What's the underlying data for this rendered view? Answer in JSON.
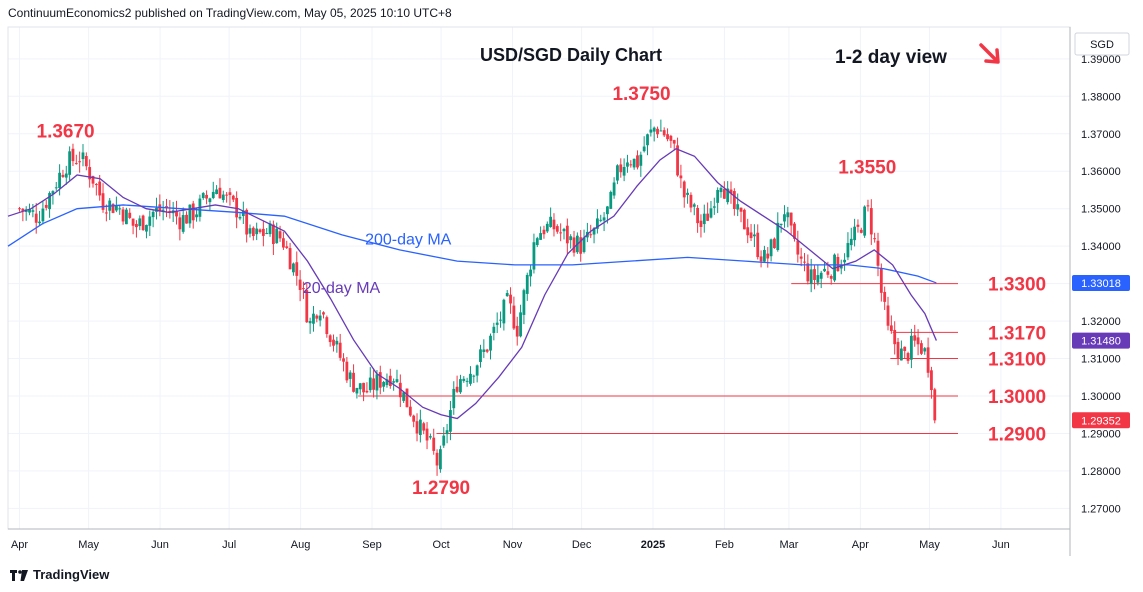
{
  "header": {
    "publisher": "ContinuumEconomics2 published on TradingView.com, May 05, 2025 10:10 UTC+8"
  },
  "brand": {
    "name": "TradingView"
  },
  "chart_data": {
    "type": "candlestick",
    "title": "USD/SGD Daily Chart",
    "view_label": "1-2 day view",
    "view_direction": "down",
    "currency": "SGD",
    "y_range": [
      1.2645,
      1.3985
    ],
    "y_ticks": [
      "1.39000",
      "1.38000",
      "1.37000",
      "1.36000",
      "1.35000",
      "1.34000",
      "1.33000",
      "1.32000",
      "1.31000",
      "1.30000",
      "1.29000",
      "1.28000",
      "1.27000"
    ],
    "y_tick_values": [
      1.39,
      1.38,
      1.37,
      1.36,
      1.35,
      1.34,
      1.33,
      1.32,
      1.31,
      1.3,
      1.29,
      1.28,
      1.27
    ],
    "x_labels": [
      "Apr",
      "May",
      "Jun",
      "Jul",
      "Aug",
      "Sep",
      "Oct",
      "Nov",
      "Dec",
      "2025",
      "Feb",
      "Mar",
      "Apr",
      "May",
      "Jun"
    ],
    "x_label_bold": [
      false,
      false,
      false,
      false,
      false,
      false,
      false,
      false,
      false,
      true,
      false,
      false,
      false,
      false,
      false
    ],
    "x_label_days": [
      0,
      30,
      61,
      91,
      122,
      153,
      183,
      214,
      244,
      275,
      306,
      334,
      365,
      395,
      426
    ],
    "x_domain_days": [
      -5,
      456
    ],
    "ohlc_close_points": [
      [
        0,
        1.35
      ],
      [
        8,
        1.348
      ],
      [
        14,
        1.355
      ],
      [
        20,
        1.362
      ],
      [
        26,
        1.364
      ],
      [
        32,
        1.358
      ],
      [
        36,
        1.352
      ],
      [
        44,
        1.35
      ],
      [
        50,
        1.345
      ],
      [
        58,
        1.349
      ],
      [
        64,
        1.35
      ],
      [
        70,
        1.347
      ],
      [
        76,
        1.349
      ],
      [
        80,
        1.352
      ],
      [
        86,
        1.356
      ],
      [
        90,
        1.352
      ],
      [
        96,
        1.349
      ],
      [
        100,
        1.342
      ],
      [
        108,
        1.344
      ],
      [
        114,
        1.342
      ],
      [
        118,
        1.336
      ],
      [
        122,
        1.33
      ],
      [
        126,
        1.319
      ],
      [
        130,
        1.325
      ],
      [
        134,
        1.318
      ],
      [
        138,
        1.312
      ],
      [
        144,
        1.304
      ],
      [
        150,
        1.301
      ],
      [
        156,
        1.304
      ],
      [
        162,
        1.306
      ],
      [
        166,
        1.301
      ],
      [
        170,
        1.296
      ],
      [
        174,
        1.291
      ],
      [
        178,
        1.287
      ],
      [
        182,
        1.281
      ],
      [
        186,
        1.293
      ],
      [
        190,
        1.304
      ],
      [
        196,
        1.307
      ],
      [
        202,
        1.312
      ],
      [
        208,
        1.32
      ],
      [
        212,
        1.325
      ],
      [
        216,
        1.318
      ],
      [
        220,
        1.33
      ],
      [
        224,
        1.343
      ],
      [
        228,
        1.345
      ],
      [
        232,
        1.345
      ],
      [
        238,
        1.342
      ],
      [
        244,
        1.34
      ],
      [
        250,
        1.344
      ],
      [
        256,
        1.35
      ],
      [
        260,
        1.36
      ],
      [
        264,
        1.364
      ],
      [
        268,
        1.362
      ],
      [
        272,
        1.368
      ],
      [
        276,
        1.372
      ],
      [
        280,
        1.37
      ],
      [
        284,
        1.366
      ],
      [
        288,
        1.354
      ],
      [
        292,
        1.35
      ],
      [
        296,
        1.345
      ],
      [
        300,
        1.35
      ],
      [
        304,
        1.359
      ],
      [
        308,
        1.352
      ],
      [
        312,
        1.348
      ],
      [
        316,
        1.345
      ],
      [
        320,
        1.34
      ],
      [
        324,
        1.336
      ],
      [
        328,
        1.342
      ],
      [
        332,
        1.35
      ],
      [
        336,
        1.34
      ],
      [
        340,
        1.335
      ],
      [
        344,
        1.331
      ],
      [
        348,
        1.333
      ],
      [
        352,
        1.334
      ],
      [
        356,
        1.336
      ],
      [
        360,
        1.34
      ],
      [
        364,
        1.344
      ],
      [
        368,
        1.35
      ],
      [
        371,
        1.342
      ],
      [
        374,
        1.328
      ],
      [
        377,
        1.317
      ],
      [
        380,
        1.314
      ],
      [
        384,
        1.31
      ],
      [
        388,
        1.314
      ],
      [
        392,
        1.313
      ],
      [
        394,
        1.31
      ],
      [
        396,
        1.304
      ],
      [
        398,
        1.2935
      ]
    ],
    "ma_20_day": {
      "name": "20-day MA",
      "color": "#673ab7",
      "points": [
        [
          -5,
          1.348
        ],
        [
          5,
          1.35
        ],
        [
          15,
          1.354
        ],
        [
          25,
          1.359
        ],
        [
          35,
          1.358
        ],
        [
          45,
          1.353
        ],
        [
          55,
          1.35
        ],
        [
          65,
          1.349
        ],
        [
          75,
          1.35
        ],
        [
          85,
          1.351
        ],
        [
          95,
          1.35
        ],
        [
          105,
          1.347
        ],
        [
          115,
          1.344
        ],
        [
          125,
          1.336
        ],
        [
          135,
          1.326
        ],
        [
          145,
          1.315
        ],
        [
          155,
          1.306
        ],
        [
          165,
          1.302
        ],
        [
          175,
          1.297
        ],
        [
          183,
          1.295
        ],
        [
          190,
          1.294
        ],
        [
          198,
          1.298
        ],
        [
          208,
          1.305
        ],
        [
          218,
          1.313
        ],
        [
          228,
          1.327
        ],
        [
          238,
          1.338
        ],
        [
          248,
          1.344
        ],
        [
          258,
          1.348
        ],
        [
          268,
          1.356
        ],
        [
          278,
          1.363
        ],
        [
          285,
          1.366
        ],
        [
          293,
          1.364
        ],
        [
          303,
          1.357
        ],
        [
          313,
          1.352
        ],
        [
          323,
          1.348
        ],
        [
          333,
          1.344
        ],
        [
          343,
          1.339
        ],
        [
          353,
          1.334
        ],
        [
          363,
          1.336
        ],
        [
          371,
          1.339
        ],
        [
          379,
          1.335
        ],
        [
          387,
          1.327
        ],
        [
          393,
          1.322
        ],
        [
          398,
          1.3148
        ]
      ]
    },
    "ma_200_day": {
      "name": "200-day MA",
      "color": "#2962ff",
      "points": [
        [
          -5,
          1.34
        ],
        [
          10,
          1.346
        ],
        [
          25,
          1.35
        ],
        [
          45,
          1.351
        ],
        [
          70,
          1.35
        ],
        [
          95,
          1.349
        ],
        [
          115,
          1.348
        ],
        [
          140,
          1.343
        ],
        [
          165,
          1.339
        ],
        [
          190,
          1.336
        ],
        [
          215,
          1.335
        ],
        [
          240,
          1.335
        ],
        [
          265,
          1.336
        ],
        [
          290,
          1.337
        ],
        [
          315,
          1.336
        ],
        [
          340,
          1.335
        ],
        [
          360,
          1.335
        ],
        [
          375,
          1.334
        ],
        [
          390,
          1.332
        ],
        [
          398,
          1.33018
        ]
      ]
    },
    "levels": [
      {
        "label": "1.3300",
        "value": 1.33,
        "from_day": 335
      },
      {
        "label": "1.3170",
        "value": 1.317,
        "from_day": 379
      },
      {
        "label": "1.3100",
        "value": 1.31,
        "from_day": 378
      },
      {
        "label": "1.3000",
        "value": 1.3,
        "from_day": 147
      },
      {
        "label": "1.2900",
        "value": 1.29,
        "from_day": 181
      }
    ],
    "annotations": [
      {
        "label": "1.3670",
        "day": 20,
        "value": 1.369
      },
      {
        "label": "1.3750",
        "day": 270,
        "value": 1.379
      },
      {
        "label": "1.3550",
        "day": 368,
        "value": 1.3594
      },
      {
        "label": "1.2790",
        "day": 183,
        "value": 1.2738
      }
    ],
    "ma_labels": [
      {
        "label": "200-day MA",
        "day": 150,
        "value": 1.3405,
        "color": "#2962ff"
      },
      {
        "label": "20-day MA",
        "day": 123,
        "value": 1.3275,
        "color": "#673ab7"
      }
    ],
    "price_tags": [
      {
        "label": "1.33018",
        "value": 1.33018,
        "bg": "#2962ff"
      },
      {
        "label": "1.31480",
        "value": 1.3148,
        "bg": "#673ab7"
      },
      {
        "label": "1.29352",
        "value": 1.29352,
        "bg": "#f23645"
      }
    ],
    "colors": {
      "up": "#089981",
      "down": "#f23645",
      "level_line": "#f23645",
      "grid": "#f0f3fa",
      "axis_text": "#131722",
      "annotation": "#f23645"
    },
    "grid": true
  }
}
